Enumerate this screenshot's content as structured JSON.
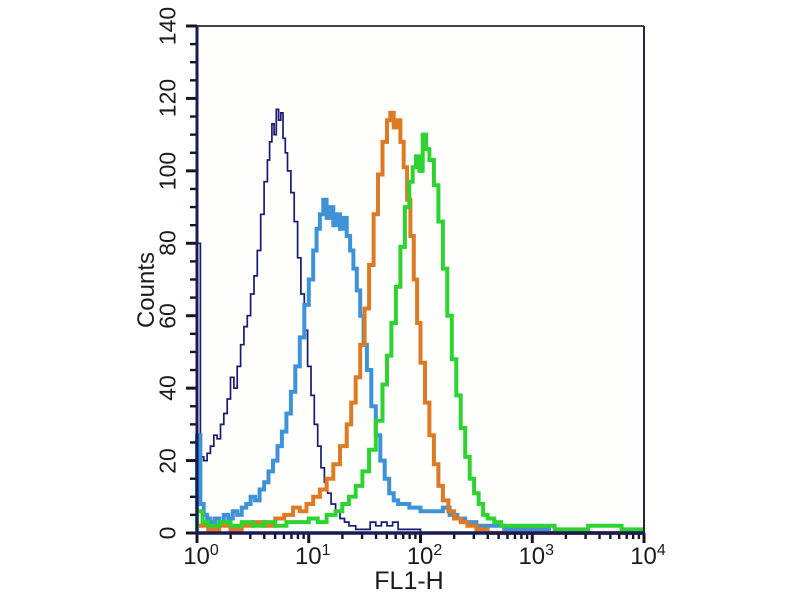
{
  "chart_data": {
    "type": "line",
    "subtype": "flow-cytometry-histogram-overlay",
    "title": "",
    "xlabel": "FL1-H",
    "ylabel": "Counts",
    "x_scale": "log10",
    "x_range_decades": [
      0,
      4
    ],
    "x_ticks": [
      {
        "mantissa": "10",
        "exp": "0"
      },
      {
        "mantissa": "10",
        "exp": "1"
      },
      {
        "mantissa": "10",
        "exp": "2"
      },
      {
        "mantissa": "10",
        "exp": "3"
      },
      {
        "mantissa": "10",
        "exp": "4"
      }
    ],
    "y_ticks": [
      0,
      20,
      40,
      60,
      80,
      100,
      120,
      140
    ],
    "y_minor_step": 5,
    "ylim": [
      0,
      140
    ],
    "grid": false,
    "legend": null,
    "series": [
      {
        "name": "navy-outline-histogram",
        "color": "#191a70",
        "width": 1.7,
        "points": [
          [
            0.0,
            80
          ],
          [
            0.03,
            21
          ],
          [
            0.06,
            20
          ],
          [
            0.09,
            22
          ],
          [
            0.12,
            24
          ],
          [
            0.15,
            27
          ],
          [
            0.18,
            26
          ],
          [
            0.21,
            30
          ],
          [
            0.24,
            33
          ],
          [
            0.27,
            37
          ],
          [
            0.3,
            43
          ],
          [
            0.33,
            40
          ],
          [
            0.36,
            46
          ],
          [
            0.39,
            52
          ],
          [
            0.42,
            57
          ],
          [
            0.45,
            60
          ],
          [
            0.48,
            66
          ],
          [
            0.51,
            71
          ],
          [
            0.54,
            78
          ],
          [
            0.57,
            88
          ],
          [
            0.6,
            97
          ],
          [
            0.63,
            103
          ],
          [
            0.65,
            108
          ],
          [
            0.67,
            113
          ],
          [
            0.69,
            110
          ],
          [
            0.71,
            117
          ],
          [
            0.73,
            114
          ],
          [
            0.75,
            116
          ],
          [
            0.77,
            109
          ],
          [
            0.79,
            105
          ],
          [
            0.81,
            100
          ],
          [
            0.84,
            94
          ],
          [
            0.87,
            86
          ],
          [
            0.9,
            76
          ],
          [
            0.93,
            66
          ],
          [
            0.96,
            56
          ],
          [
            0.99,
            46
          ],
          [
            1.02,
            38
          ],
          [
            1.05,
            30
          ],
          [
            1.08,
            24
          ],
          [
            1.11,
            18
          ],
          [
            1.14,
            14
          ],
          [
            1.17,
            11
          ],
          [
            1.2,
            8
          ],
          [
            1.24,
            6
          ],
          [
            1.28,
            4
          ],
          [
            1.32,
            3
          ],
          [
            1.36,
            2
          ],
          [
            1.42,
            1
          ],
          [
            1.5,
            1
          ],
          [
            1.55,
            3
          ],
          [
            1.6,
            2
          ],
          [
            1.65,
            3
          ],
          [
            1.7,
            2
          ],
          [
            1.75,
            3
          ],
          [
            1.8,
            1
          ],
          [
            1.9,
            1
          ],
          [
            2.0,
            0
          ],
          [
            4.0,
            0
          ]
        ]
      },
      {
        "name": "light-blue-histogram",
        "color": "#3e93d8",
        "width": 4,
        "points": [
          [
            0.0,
            27
          ],
          [
            0.03,
            8
          ],
          [
            0.06,
            5
          ],
          [
            0.09,
            4
          ],
          [
            0.12,
            3
          ],
          [
            0.16,
            4
          ],
          [
            0.2,
            3
          ],
          [
            0.24,
            5
          ],
          [
            0.28,
            4
          ],
          [
            0.32,
            6
          ],
          [
            0.36,
            5
          ],
          [
            0.4,
            7
          ],
          [
            0.44,
            8
          ],
          [
            0.48,
            10
          ],
          [
            0.52,
            9
          ],
          [
            0.56,
            12
          ],
          [
            0.6,
            14
          ],
          [
            0.64,
            17
          ],
          [
            0.68,
            20
          ],
          [
            0.72,
            24
          ],
          [
            0.76,
            28
          ],
          [
            0.8,
            33
          ],
          [
            0.84,
            39
          ],
          [
            0.88,
            46
          ],
          [
            0.92,
            54
          ],
          [
            0.96,
            63
          ],
          [
            1.0,
            70
          ],
          [
            1.04,
            78
          ],
          [
            1.07,
            84
          ],
          [
            1.1,
            88
          ],
          [
            1.13,
            92
          ],
          [
            1.16,
            87
          ],
          [
            1.19,
            90
          ],
          [
            1.22,
            85
          ],
          [
            1.25,
            88
          ],
          [
            1.28,
            84
          ],
          [
            1.31,
            87
          ],
          [
            1.34,
            82
          ],
          [
            1.37,
            78
          ],
          [
            1.4,
            73
          ],
          [
            1.43,
            67
          ],
          [
            1.46,
            60
          ],
          [
            1.49,
            52
          ],
          [
            1.52,
            45
          ],
          [
            1.56,
            35
          ],
          [
            1.6,
            27
          ],
          [
            1.64,
            20
          ],
          [
            1.68,
            15
          ],
          [
            1.72,
            11
          ],
          [
            1.76,
            9
          ],
          [
            1.8,
            8
          ],
          [
            1.9,
            7
          ],
          [
            2.0,
            6
          ],
          [
            2.1,
            6
          ],
          [
            2.2,
            7
          ],
          [
            2.26,
            5
          ],
          [
            2.33,
            4
          ],
          [
            2.4,
            3
          ],
          [
            2.5,
            2
          ],
          [
            2.62,
            2
          ],
          [
            2.75,
            1
          ],
          [
            2.9,
            1
          ],
          [
            3.05,
            1
          ],
          [
            3.15,
            0
          ],
          [
            4.0,
            0
          ]
        ]
      },
      {
        "name": "orange-histogram",
        "color": "#de7a23",
        "width": 4,
        "points": [
          [
            0.0,
            2
          ],
          [
            0.1,
            1
          ],
          [
            0.2,
            2
          ],
          [
            0.3,
            1
          ],
          [
            0.4,
            2
          ],
          [
            0.5,
            3
          ],
          [
            0.6,
            2
          ],
          [
            0.7,
            4
          ],
          [
            0.78,
            5
          ],
          [
            0.86,
            7
          ],
          [
            0.92,
            6
          ],
          [
            0.98,
            8
          ],
          [
            1.04,
            10
          ],
          [
            1.1,
            12
          ],
          [
            1.16,
            15
          ],
          [
            1.22,
            19
          ],
          [
            1.28,
            24
          ],
          [
            1.34,
            30
          ],
          [
            1.38,
            36
          ],
          [
            1.42,
            43
          ],
          [
            1.46,
            52
          ],
          [
            1.5,
            62
          ],
          [
            1.54,
            74
          ],
          [
            1.58,
            88
          ],
          [
            1.62,
            99
          ],
          [
            1.66,
            108
          ],
          [
            1.7,
            114
          ],
          [
            1.73,
            116
          ],
          [
            1.76,
            112
          ],
          [
            1.79,
            114
          ],
          [
            1.82,
            108
          ],
          [
            1.85,
            101
          ],
          [
            1.88,
            92
          ],
          [
            1.91,
            82
          ],
          [
            1.94,
            70
          ],
          [
            1.97,
            58
          ],
          [
            2.0,
            47
          ],
          [
            2.04,
            36
          ],
          [
            2.08,
            27
          ],
          [
            2.12,
            19
          ],
          [
            2.16,
            13
          ],
          [
            2.2,
            9
          ],
          [
            2.25,
            6
          ],
          [
            2.3,
            4
          ],
          [
            2.36,
            3
          ],
          [
            2.42,
            2
          ],
          [
            2.5,
            1
          ],
          [
            2.6,
            0
          ],
          [
            4.0,
            0
          ]
        ]
      },
      {
        "name": "green-histogram",
        "color": "#2fd331",
        "width": 4,
        "points": [
          [
            0.0,
            6
          ],
          [
            0.05,
            3
          ],
          [
            0.1,
            2
          ],
          [
            0.2,
            3
          ],
          [
            0.3,
            2
          ],
          [
            0.4,
            3
          ],
          [
            0.5,
            2
          ],
          [
            0.6,
            3
          ],
          [
            0.7,
            2
          ],
          [
            0.8,
            3
          ],
          [
            0.9,
            3
          ],
          [
            1.0,
            4
          ],
          [
            1.08,
            3
          ],
          [
            1.16,
            5
          ],
          [
            1.24,
            6
          ],
          [
            1.3,
            8
          ],
          [
            1.36,
            10
          ],
          [
            1.42,
            13
          ],
          [
            1.48,
            17
          ],
          [
            1.54,
            23
          ],
          [
            1.6,
            31
          ],
          [
            1.66,
            41
          ],
          [
            1.7,
            49
          ],
          [
            1.74,
            58
          ],
          [
            1.78,
            68
          ],
          [
            1.82,
            79
          ],
          [
            1.86,
            90
          ],
          [
            1.9,
            97
          ],
          [
            1.93,
            101
          ],
          [
            1.96,
            104
          ],
          [
            1.99,
            100
          ],
          [
            2.02,
            110
          ],
          [
            2.05,
            106
          ],
          [
            2.08,
            103
          ],
          [
            2.12,
            96
          ],
          [
            2.16,
            86
          ],
          [
            2.2,
            73
          ],
          [
            2.24,
            60
          ],
          [
            2.28,
            48
          ],
          [
            2.32,
            38
          ],
          [
            2.36,
            29
          ],
          [
            2.4,
            21
          ],
          [
            2.44,
            15
          ],
          [
            2.48,
            11
          ],
          [
            2.52,
            8
          ],
          [
            2.56,
            5
          ],
          [
            2.6,
            4
          ],
          [
            2.66,
            3
          ],
          [
            2.72,
            2
          ],
          [
            2.8,
            2
          ],
          [
            3.0,
            2
          ],
          [
            3.2,
            1
          ],
          [
            3.5,
            2
          ],
          [
            3.8,
            1
          ],
          [
            4.0,
            1
          ]
        ]
      }
    ]
  },
  "frame": {
    "axis_color": "#1a1a55",
    "frame_color": "#26263d",
    "tick_color": "#141430",
    "text_color": "#1b1b1b",
    "plot_bg": "#fefefc",
    "page_bg": "#ffffff"
  }
}
